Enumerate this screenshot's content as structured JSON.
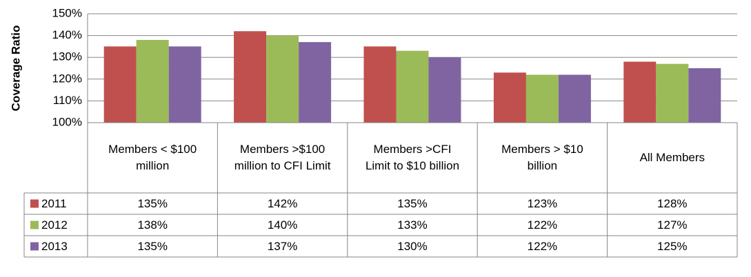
{
  "chart_data": {
    "type": "bar",
    "y_label": "Coverage Ratio",
    "categories": [
      "Members < $100 million",
      "Members >$100 million to CFI Limit",
      "Members >CFI Limit to $10 billion",
      "Members > $10 billion",
      "All Members"
    ],
    "series": [
      {
        "name": "2011",
        "color": "#c0504d",
        "values": [
          135,
          142,
          135,
          123,
          128
        ],
        "value_labels": [
          "135%",
          "142%",
          "135%",
          "123%",
          "128%"
        ]
      },
      {
        "name": "2012",
        "color": "#9bbb59",
        "values": [
          138,
          140,
          133,
          122,
          127
        ],
        "value_labels": [
          "138%",
          "140%",
          "133%",
          "122%",
          "127%"
        ]
      },
      {
        "name": "2013",
        "color": "#8064a2",
        "values": [
          135,
          137,
          130,
          122,
          125
        ],
        "value_labels": [
          "135%",
          "137%",
          "130%",
          "122%",
          "125%"
        ]
      }
    ],
    "ylim": [
      100,
      150
    ],
    "yticks": [
      {
        "value": 100,
        "label": "100%"
      },
      {
        "value": 110,
        "label": "110%"
      },
      {
        "value": 120,
        "label": "120%"
      },
      {
        "value": 130,
        "label": "130%"
      },
      {
        "value": 140,
        "label": "140%"
      },
      {
        "value": 150,
        "label": "150%"
      }
    ],
    "grid": true
  }
}
